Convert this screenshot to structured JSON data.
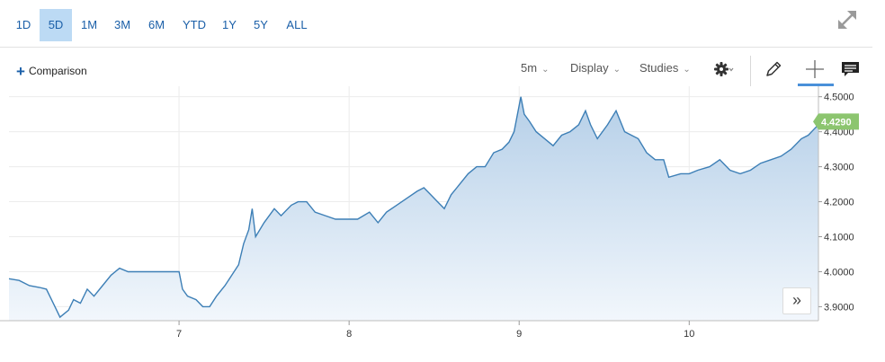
{
  "range_buttons": [
    {
      "label": "1D",
      "active": false
    },
    {
      "label": "5D",
      "active": true
    },
    {
      "label": "1M",
      "active": false
    },
    {
      "label": "3M",
      "active": false
    },
    {
      "label": "6M",
      "active": false
    },
    {
      "label": "YTD",
      "active": false
    },
    {
      "label": "1Y",
      "active": false
    },
    {
      "label": "5Y",
      "active": false
    },
    {
      "label": "ALL",
      "active": false
    }
  ],
  "toolbar": {
    "comparison_label": "Comparison",
    "interval_label": "5m",
    "display_label": "Display",
    "studies_label": "Studies"
  },
  "icons": {
    "expand": "expand-icon",
    "settings": "gear-icon",
    "draw": "pencil-icon",
    "crosshair": "crosshair-icon",
    "comments": "comment-icon",
    "scroll": "double-chevron-right-icon"
  },
  "colors": {
    "line": "#3d7fb6",
    "fill_top": "#b5cfe8",
    "fill_bottom": "#f2f7fc",
    "price_tag": "#8cc56f",
    "active_range": "#bcdaf4"
  },
  "chart_data": {
    "type": "area",
    "interval": "5m",
    "current_price_label": "4.4290",
    "current_price": 4.429,
    "ylim": [
      3.86,
      4.53
    ],
    "yticks": [
      {
        "value": 3.9,
        "label": "3.9000"
      },
      {
        "value": 4.0,
        "label": "4.0000"
      },
      {
        "value": 4.1,
        "label": "4.1000"
      },
      {
        "value": 4.2,
        "label": "4.2000"
      },
      {
        "value": 4.3,
        "label": "4.3000"
      },
      {
        "value": 4.4,
        "label": "4.4000"
      },
      {
        "value": 4.5,
        "label": "4.5000"
      }
    ],
    "xlim": [
      6.0,
      10.76
    ],
    "xticks": [
      {
        "value": 7,
        "label": "7"
      },
      {
        "value": 8,
        "label": "8"
      },
      {
        "value": 9,
        "label": "9"
      },
      {
        "value": 10,
        "label": "10"
      }
    ],
    "series": [
      {
        "x": [
          6.0,
          6.06,
          6.12,
          6.18,
          6.22,
          6.27,
          6.3,
          6.35,
          6.38,
          6.42,
          6.46,
          6.5,
          6.55,
          6.6,
          6.65,
          6.7,
          6.75,
          6.8,
          6.85,
          6.9,
          6.95,
          6.99,
          7.0,
          7.02,
          7.05,
          7.1,
          7.14,
          7.18,
          7.22,
          7.27,
          7.31,
          7.35,
          7.38,
          7.41,
          7.43,
          7.45,
          7.5,
          7.56,
          7.6,
          7.66,
          7.7,
          7.75,
          7.8,
          7.86,
          7.92,
          7.98,
          8.05,
          8.12,
          8.17,
          8.22,
          8.28,
          8.34,
          8.4,
          8.44,
          8.48,
          8.52,
          8.56,
          8.6,
          8.65,
          8.7,
          8.75,
          8.8,
          8.85,
          8.9,
          8.94,
          8.97,
          9.01,
          9.03,
          9.06,
          9.1,
          9.15,
          9.2,
          9.25,
          9.3,
          9.35,
          9.39,
          9.42,
          9.46,
          9.52,
          9.57,
          9.62,
          9.66,
          9.7,
          9.75,
          9.8,
          9.85,
          9.88,
          9.95,
          10.0,
          10.05,
          10.12,
          10.18,
          10.24,
          10.3,
          10.36,
          10.42,
          10.48,
          10.54,
          10.6,
          10.66,
          10.7,
          10.74,
          10.76
        ],
        "y": [
          3.98,
          3.975,
          3.96,
          3.955,
          3.95,
          3.9,
          3.87,
          3.89,
          3.92,
          3.91,
          3.95,
          3.93,
          3.96,
          3.99,
          4.01,
          4.0,
          4.0,
          4.0,
          4.0,
          4.0,
          4.0,
          4.0,
          4.0,
          3.95,
          3.93,
          3.92,
          3.9,
          3.9,
          3.93,
          3.96,
          3.99,
          4.02,
          4.08,
          4.12,
          4.18,
          4.1,
          4.14,
          4.18,
          4.16,
          4.19,
          4.2,
          4.2,
          4.17,
          4.16,
          4.15,
          4.15,
          4.15,
          4.17,
          4.14,
          4.17,
          4.19,
          4.21,
          4.23,
          4.24,
          4.22,
          4.2,
          4.18,
          4.22,
          4.25,
          4.28,
          4.3,
          4.3,
          4.34,
          4.35,
          4.37,
          4.4,
          4.5,
          4.45,
          4.43,
          4.4,
          4.38,
          4.36,
          4.39,
          4.4,
          4.42,
          4.46,
          4.42,
          4.38,
          4.42,
          4.46,
          4.4,
          4.39,
          4.38,
          4.34,
          4.32,
          4.32,
          4.27,
          4.28,
          4.28,
          4.29,
          4.3,
          4.32,
          4.29,
          4.28,
          4.29,
          4.31,
          4.32,
          4.33,
          4.35,
          4.38,
          4.39,
          4.41,
          4.42
        ]
      }
    ]
  }
}
